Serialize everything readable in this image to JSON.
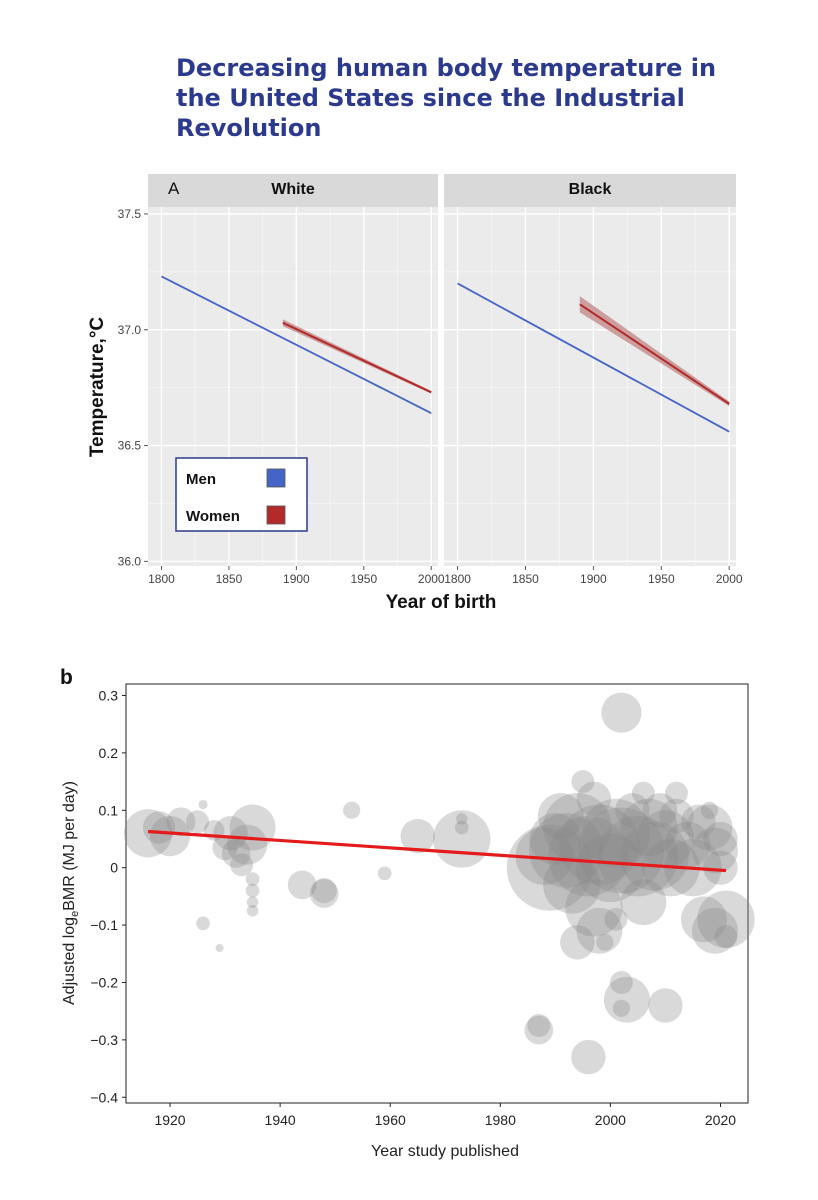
{
  "title": "Decreasing human body temperature in the United States since the Industrial Revolution",
  "colors": {
    "title": "#2b3a8c",
    "men": "#4565c6",
    "women": "#b22a2a",
    "women_ribbon": "#c79090",
    "panel_bg": "#ebebeb",
    "strip_bg": "#d9d9d9",
    "bubble": "#8a8a8a",
    "trend": "#e51b1b"
  },
  "chart_data": [
    {
      "type": "line",
      "panel_letter": "A",
      "facets": [
        "White",
        "Black"
      ],
      "xlabel": "Year of birth",
      "ylabel": "Temperature,°C",
      "xlim": [
        1790,
        2005
      ],
      "ylim": [
        35.98,
        37.53
      ],
      "x_ticks": [
        1800,
        1850,
        1900,
        1950,
        2000
      ],
      "y_ticks": [
        36.0,
        36.5,
        37.0,
        37.5
      ],
      "y_tick_labels": [
        "36.0",
        "36.5",
        "37.0",
        "37.5"
      ],
      "legend": {
        "position": "bottom-left",
        "entries": [
          {
            "label": "Men",
            "series": "Men"
          },
          {
            "label": "Women",
            "series": "Women"
          }
        ]
      },
      "series": [
        {
          "name": "Men",
          "facet": "White",
          "x": [
            1800,
            2000
          ],
          "y": [
            37.23,
            36.64
          ]
        },
        {
          "name": "Women",
          "facet": "White",
          "x": [
            1890,
            2000
          ],
          "y": [
            37.03,
            36.73
          ],
          "ci": [
            0.015,
            0.006
          ]
        },
        {
          "name": "Men",
          "facet": "Black",
          "x": [
            1800,
            2000
          ],
          "y": [
            37.2,
            36.56
          ]
        },
        {
          "name": "Women",
          "facet": "Black",
          "x": [
            1890,
            2000
          ],
          "y": [
            37.11,
            36.68
          ],
          "ci": [
            0.035,
            0.01
          ]
        }
      ]
    },
    {
      "type": "scatter",
      "panel_letter": "b",
      "xlabel": "Year study published",
      "ylabel": "Adjusted log",
      "ylabel_sub": "e",
      "ylabel_tail": "BMR (MJ per day)",
      "xlim": [
        1912,
        2025
      ],
      "ylim": [
        -0.41,
        0.32
      ],
      "x_ticks": [
        1920,
        1940,
        1960,
        1980,
        2000,
        2020
      ],
      "y_ticks": [
        0.3,
        0.2,
        0.1,
        0,
        -0.1,
        -0.2,
        -0.3,
        -0.4
      ],
      "y_tick_labels": [
        "0.3",
        "0.2",
        "0.1",
        "0",
        "−0.1",
        "−0.2",
        "−0.3",
        "−0.4"
      ],
      "trend": {
        "x": [
          1916,
          2021
        ],
        "y": [
          0.063,
          -0.005
        ]
      },
      "points": [
        [
          1916,
          0.06,
          0.042
        ],
        [
          1918,
          0.07,
          0.028
        ],
        [
          1920,
          0.055,
          0.035
        ],
        [
          1922,
          0.08,
          0.025
        ],
        [
          1925,
          0.08,
          0.02
        ],
        [
          1926,
          0.11,
          0.008
        ],
        [
          1926,
          -0.097,
          0.012
        ],
        [
          1929,
          -0.14,
          0.007
        ],
        [
          1928,
          0.065,
          0.018
        ],
        [
          1930,
          0.035,
          0.022
        ],
        [
          1931,
          0.06,
          0.03
        ],
        [
          1932,
          0.025,
          0.025
        ],
        [
          1933,
          0.005,
          0.02
        ],
        [
          1934,
          0.04,
          0.035
        ],
        [
          1935,
          0.07,
          0.04
        ],
        [
          1935,
          -0.02,
          0.012
        ],
        [
          1935,
          -0.04,
          0.012
        ],
        [
          1935,
          -0.06,
          0.01
        ],
        [
          1935,
          -0.075,
          0.01
        ],
        [
          1944,
          -0.03,
          0.025
        ],
        [
          1948,
          -0.04,
          0.022
        ],
        [
          1948,
          -0.045,
          0.025
        ],
        [
          1953,
          0.1,
          0.015
        ],
        [
          1959,
          -0.01,
          0.012
        ],
        [
          1965,
          0.055,
          0.03
        ],
        [
          1973,
          0.07,
          0.012
        ],
        [
          1973,
          0.085,
          0.01
        ],
        [
          1973,
          0.05,
          0.05
        ],
        [
          1987,
          -0.275,
          0.02
        ],
        [
          1987,
          -0.283,
          0.025
        ],
        [
          1988,
          0.02,
          0.05
        ],
        [
          1989,
          0.0,
          0.075
        ],
        [
          1990,
          0.05,
          0.045
        ],
        [
          1991,
          0.09,
          0.04
        ],
        [
          1992,
          0.03,
          0.065
        ],
        [
          1993,
          -0.03,
          0.05
        ],
        [
          1994,
          0.07,
          0.06
        ],
        [
          1994,
          -0.13,
          0.03
        ],
        [
          1995,
          0.15,
          0.02
        ],
        [
          1996,
          0.02,
          0.07
        ],
        [
          1996,
          -0.33,
          0.03
        ],
        [
          1997,
          0.12,
          0.03
        ],
        [
          1997,
          -0.07,
          0.05
        ],
        [
          1998,
          0.04,
          0.07
        ],
        [
          1998,
          -0.11,
          0.04
        ],
        [
          1999,
          -0.13,
          0.015
        ],
        [
          2000,
          0.0,
          0.06
        ],
        [
          2001,
          0.06,
          0.06
        ],
        [
          2001,
          -0.09,
          0.02
        ],
        [
          2002,
          0.27,
          0.035
        ],
        [
          2002,
          0.03,
          0.075
        ],
        [
          2002,
          -0.2,
          0.02
        ],
        [
          2002,
          -0.245,
          0.015
        ],
        [
          2003,
          -0.23,
          0.04
        ],
        [
          2004,
          0.1,
          0.03
        ],
        [
          2005,
          0.02,
          0.07
        ],
        [
          2006,
          0.13,
          0.02
        ],
        [
          2006,
          -0.06,
          0.04
        ],
        [
          2007,
          0.07,
          0.05
        ],
        [
          2008,
          0.02,
          0.06
        ],
        [
          2009,
          0.1,
          0.03
        ],
        [
          2010,
          -0.24,
          0.03
        ],
        [
          2010,
          0.05,
          0.05
        ],
        [
          2011,
          0.0,
          0.05
        ],
        [
          2012,
          0.09,
          0.03
        ],
        [
          2012,
          0.13,
          0.02
        ],
        [
          2014,
          0.04,
          0.04
        ],
        [
          2015,
          0.0,
          0.05
        ],
        [
          2016,
          0.08,
          0.03
        ],
        [
          2017,
          -0.09,
          0.04
        ],
        [
          2018,
          0.07,
          0.04
        ],
        [
          2018,
          0.1,
          0.015
        ],
        [
          2019,
          -0.11,
          0.04
        ],
        [
          2019,
          0.03,
          0.04
        ],
        [
          2020,
          0.0,
          0.03
        ],
        [
          2021,
          -0.09,
          0.05
        ],
        [
          2021,
          -0.12,
          0.02
        ],
        [
          2020,
          0.05,
          0.03
        ]
      ]
    }
  ]
}
